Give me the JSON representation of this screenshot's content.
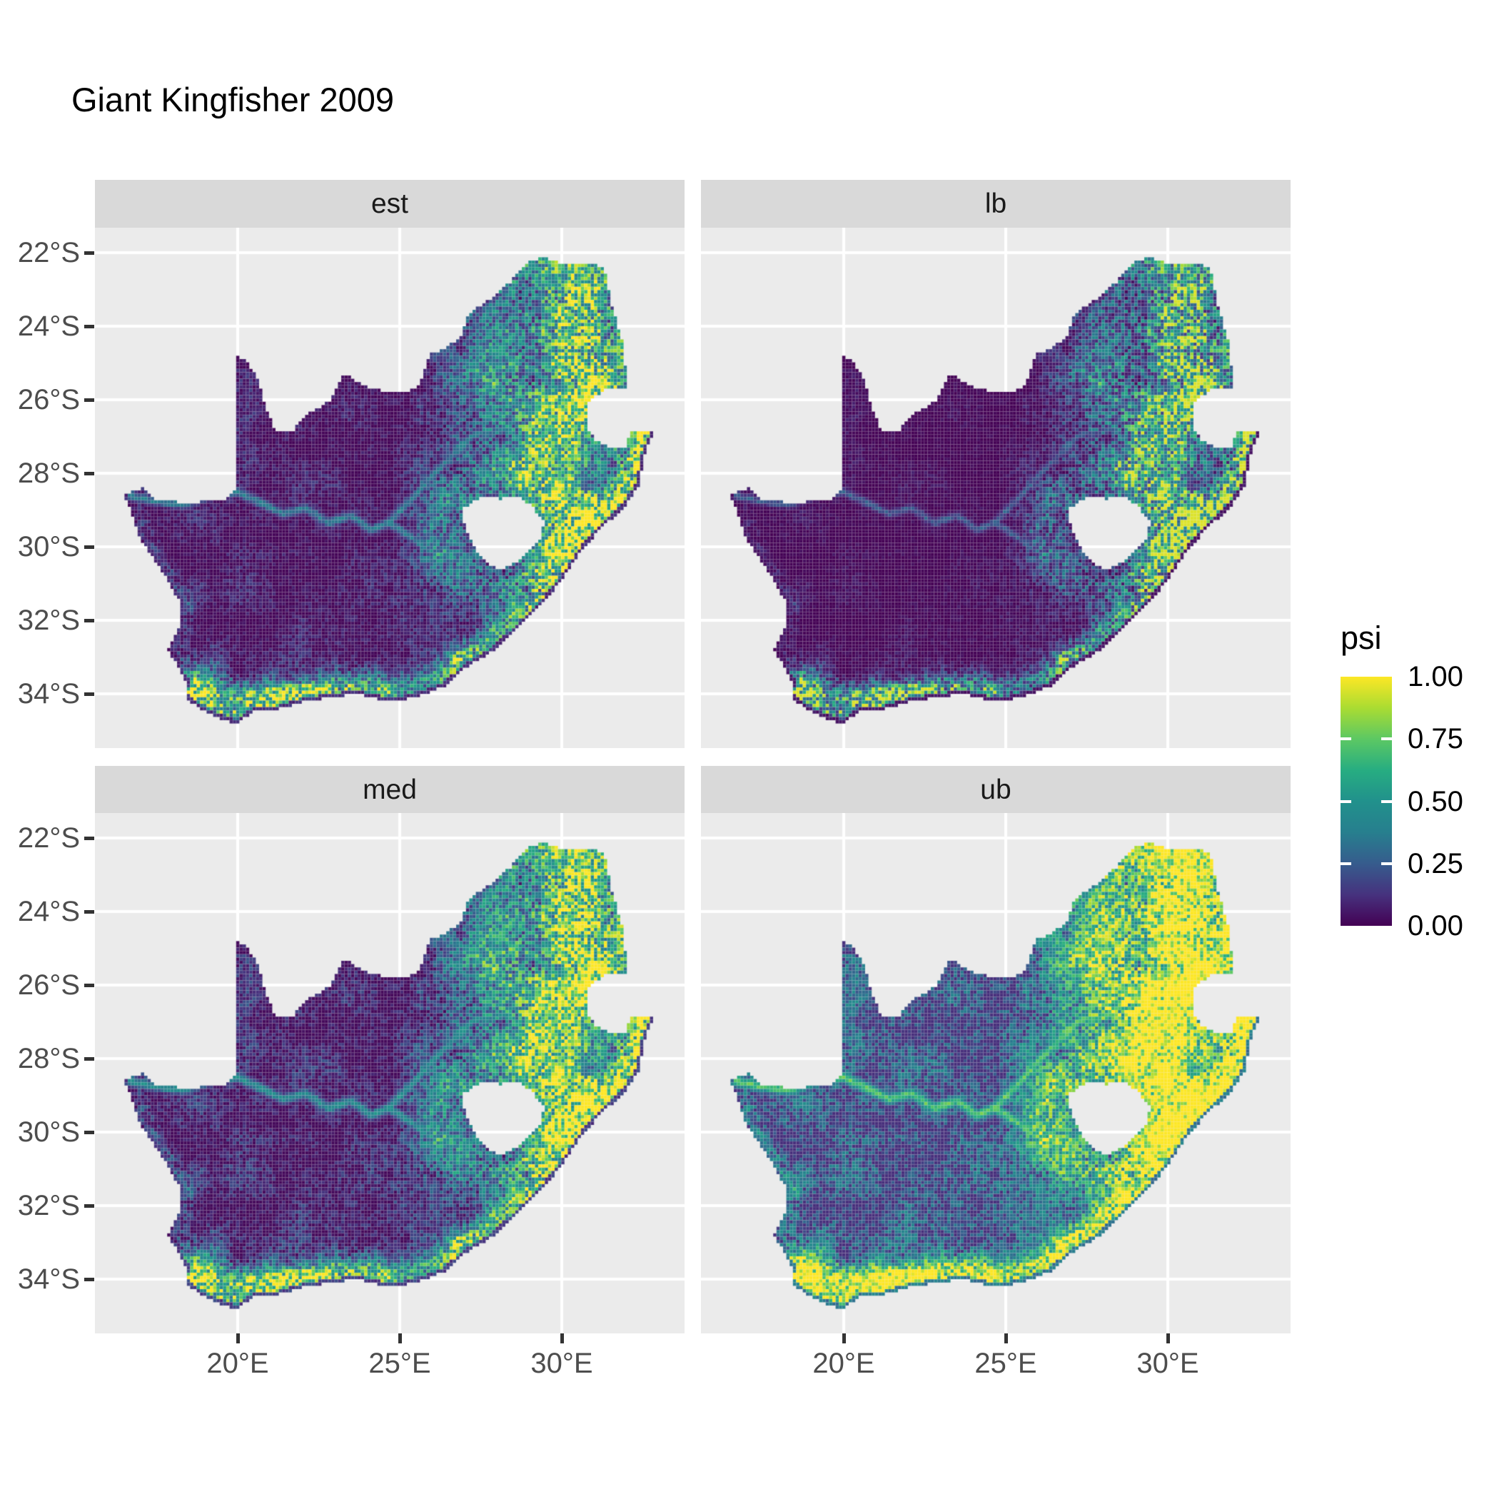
{
  "title": "Giant Kingfisher 2009",
  "facets": [
    {
      "label": "est"
    },
    {
      "label": "lb"
    },
    {
      "label": "med"
    },
    {
      "label": "ub"
    }
  ],
  "axes": {
    "x": {
      "ticks": [
        {
          "label": "20°E",
          "lon": 20
        },
        {
          "label": "25°E",
          "lon": 25
        },
        {
          "label": "30°E",
          "lon": 30
        }
      ]
    },
    "y": {
      "ticks": [
        {
          "label": "22°S",
          "lat": -22
        },
        {
          "label": "24°S",
          "lat": -24
        },
        {
          "label": "26°S",
          "lat": -26
        },
        {
          "label": "28°S",
          "lat": -28
        },
        {
          "label": "30°S",
          "lat": -30
        },
        {
          "label": "32°S",
          "lat": -32
        },
        {
          "label": "34°S",
          "lat": -34
        }
      ]
    }
  },
  "legend": {
    "title": "psi",
    "ticks": [
      {
        "label": "1.00",
        "value": 1.0
      },
      {
        "label": "0.75",
        "value": 0.75
      },
      {
        "label": "0.50",
        "value": 0.5
      },
      {
        "label": "0.25",
        "value": 0.25
      },
      {
        "label": "0.00",
        "value": 0.0
      }
    ]
  },
  "colors": {
    "background": "#ffffff",
    "panel_bg": "#ebebeb",
    "strip_bg": "#d9d9d9",
    "gridline": "#ffffff",
    "axis_text": "#4d4d4d",
    "tick_mark": "#333333",
    "title_text": "#000000"
  },
  "chart_data": {
    "type": "heatmap",
    "title": "Giant Kingfisher 2009",
    "region": "South Africa",
    "variable": "psi",
    "value_range": [
      0,
      1
    ],
    "facets": [
      "est",
      "lb",
      "med",
      "ub"
    ],
    "palette": "viridis",
    "palette_stops": [
      [
        0.0,
        "#440154"
      ],
      [
        0.125,
        "#46327e"
      ],
      [
        0.25,
        "#365c8d"
      ],
      [
        0.375,
        "#277f8e"
      ],
      [
        0.5,
        "#21918c"
      ],
      [
        0.625,
        "#27ad81"
      ],
      [
        0.75,
        "#5cc863"
      ],
      [
        0.875,
        "#aadc32"
      ],
      [
        1.0,
        "#fde725"
      ]
    ],
    "lon_range": [
      15.59,
      33.79
    ],
    "lat_range": [
      -35.48,
      -21.32
    ],
    "x_gridlines": [
      20,
      25,
      30
    ],
    "y_gridlines": [
      -22,
      -24,
      -26,
      -28,
      -30,
      -32,
      -34
    ],
    "facet_transforms": {
      "est": {
        "offset": 0.0,
        "scale": 1.0,
        "gamma": 1.25
      },
      "lb": {
        "offset": 0.0,
        "scale": 0.95,
        "gamma": 1.7
      },
      "med": {
        "offset": 0.0,
        "scale": 1.08,
        "gamma": 1.05
      },
      "ub": {
        "offset": 0.06,
        "scale": 1.28,
        "gamma": 0.8
      }
    },
    "outline": [
      [
        16.47,
        -28.58
      ],
      [
        17.05,
        -28.4
      ],
      [
        17.4,
        -28.7
      ],
      [
        17.95,
        -28.75
      ],
      [
        18.55,
        -28.85
      ],
      [
        19.1,
        -28.7
      ],
      [
        19.55,
        -28.72
      ],
      [
        19.99,
        -28.45
      ],
      [
        19.99,
        -24.77
      ],
      [
        20.35,
        -25.05
      ],
      [
        20.65,
        -25.47
      ],
      [
        20.85,
        -26.15
      ],
      [
        21.15,
        -26.86
      ],
      [
        21.7,
        -26.86
      ],
      [
        22.08,
        -26.4
      ],
      [
        22.57,
        -26.2
      ],
      [
        22.89,
        -25.98
      ],
      [
        23.28,
        -25.28
      ],
      [
        23.92,
        -25.62
      ],
      [
        24.75,
        -25.82
      ],
      [
        25.38,
        -25.74
      ],
      [
        25.6,
        -25.6
      ],
      [
        25.92,
        -24.76
      ],
      [
        26.42,
        -24.62
      ],
      [
        26.88,
        -24.26
      ],
      [
        27.15,
        -23.64
      ],
      [
        27.95,
        -23.16
      ],
      [
        28.35,
        -22.85
      ],
      [
        29.05,
        -22.22
      ],
      [
        29.45,
        -22.14
      ],
      [
        30.0,
        -22.3
      ],
      [
        30.85,
        -22.28
      ],
      [
        31.3,
        -22.4
      ],
      [
        31.56,
        -23.48
      ],
      [
        31.86,
        -24.4
      ],
      [
        32.05,
        -25.65
      ],
      [
        31.33,
        -25.74
      ],
      [
        30.82,
        -26.05
      ],
      [
        30.78,
        -26.8
      ],
      [
        31.05,
        -27.1
      ],
      [
        31.5,
        -27.32
      ],
      [
        31.97,
        -27.31
      ],
      [
        32.13,
        -26.86
      ],
      [
        32.85,
        -26.86
      ],
      [
        32.55,
        -27.5
      ],
      [
        32.38,
        -28.32
      ],
      [
        31.95,
        -28.92
      ],
      [
        31.3,
        -29.42
      ],
      [
        30.65,
        -30.05
      ],
      [
        30.0,
        -30.92
      ],
      [
        29.3,
        -31.65
      ],
      [
        28.55,
        -32.3
      ],
      [
        27.85,
        -32.85
      ],
      [
        27.05,
        -33.28
      ],
      [
        26.4,
        -33.78
      ],
      [
        25.62,
        -34.05
      ],
      [
        24.8,
        -34.22
      ],
      [
        23.6,
        -34.0
      ],
      [
        22.95,
        -34.1
      ],
      [
        22.1,
        -34.2
      ],
      [
        21.2,
        -34.43
      ],
      [
        20.5,
        -34.48
      ],
      [
        19.98,
        -34.82
      ],
      [
        19.3,
        -34.62
      ],
      [
        18.78,
        -34.38
      ],
      [
        18.42,
        -34.12
      ],
      [
        18.46,
        -33.72
      ],
      [
        18.23,
        -33.38
      ],
      [
        17.85,
        -32.78
      ],
      [
        18.25,
        -32.05
      ],
      [
        18.28,
        -31.6
      ],
      [
        17.6,
        -30.55
      ],
      [
        17.02,
        -29.85
      ],
      [
        16.75,
        -29.12
      ],
      [
        16.47,
        -28.58
      ]
    ],
    "lesotho": [
      [
        27.0,
        -28.92
      ],
      [
        27.55,
        -28.62
      ],
      [
        28.15,
        -28.7
      ],
      [
        28.68,
        -28.6
      ],
      [
        29.1,
        -28.92
      ],
      [
        29.45,
        -29.3
      ],
      [
        29.32,
        -29.85
      ],
      [
        28.82,
        -30.28
      ],
      [
        28.12,
        -30.66
      ],
      [
        27.7,
        -30.42
      ],
      [
        27.38,
        -30.1
      ],
      [
        27.05,
        -29.58
      ],
      [
        26.95,
        -29.18
      ],
      [
        27.0,
        -28.92
      ]
    ],
    "rivers": {
      "orange": [
        [
          16.6,
          -28.6
        ],
        [
          17.4,
          -28.75
        ],
        [
          18.3,
          -28.85
        ],
        [
          19.2,
          -28.6
        ],
        [
          20.0,
          -28.5
        ],
        [
          20.8,
          -28.85
        ],
        [
          21.4,
          -29.1
        ],
        [
          22.1,
          -28.95
        ],
        [
          22.8,
          -29.35
        ],
        [
          23.5,
          -29.15
        ],
        [
          24.1,
          -29.55
        ],
        [
          24.65,
          -29.35
        ],
        [
          25.3,
          -29.7
        ],
        [
          25.9,
          -30.1
        ],
        [
          26.5,
          -30.3
        ],
        [
          26.95,
          -30.4
        ]
      ],
      "vaal": [
        [
          24.65,
          -29.35
        ],
        [
          25.1,
          -28.95
        ],
        [
          25.7,
          -28.4
        ],
        [
          26.3,
          -27.8
        ],
        [
          26.85,
          -27.3
        ],
        [
          27.3,
          -26.95
        ],
        [
          27.95,
          -26.85
        ],
        [
          28.4,
          -26.8
        ]
      ]
    },
    "coast_east": [
      [
        32.85,
        -26.86
      ],
      [
        32.55,
        -27.5
      ],
      [
        32.38,
        -28.32
      ],
      [
        31.95,
        -28.92
      ],
      [
        31.3,
        -29.42
      ],
      [
        30.65,
        -30.05
      ],
      [
        30.0,
        -30.92
      ],
      [
        29.3,
        -31.65
      ],
      [
        28.55,
        -32.3
      ],
      [
        27.85,
        -32.85
      ],
      [
        27.05,
        -33.28
      ]
    ],
    "coast_south": [
      [
        27.05,
        -33.28
      ],
      [
        26.4,
        -33.78
      ],
      [
        25.62,
        -34.05
      ],
      [
        24.8,
        -34.22
      ],
      [
        23.6,
        -34.0
      ],
      [
        22.95,
        -34.1
      ],
      [
        22.1,
        -34.2
      ],
      [
        21.2,
        -34.43
      ],
      [
        20.5,
        -34.48
      ],
      [
        19.98,
        -34.82
      ],
      [
        19.3,
        -34.62
      ],
      [
        18.78,
        -34.38
      ],
      [
        18.42,
        -34.12
      ]
    ],
    "coast_west": [
      [
        18.46,
        -33.72
      ],
      [
        18.23,
        -33.38
      ],
      [
        17.85,
        -32.78
      ],
      [
        18.25,
        -32.05
      ],
      [
        18.28,
        -31.6
      ],
      [
        17.6,
        -30.55
      ],
      [
        17.02,
        -29.85
      ],
      [
        16.75,
        -29.12
      ],
      [
        16.47,
        -28.58
      ]
    ],
    "hotspots": [
      {
        "lon": 30.6,
        "lat": -24.3,
        "sx": 1.1,
        "sy": 1.3,
        "w": 0.3
      },
      {
        "lon": 31.0,
        "lat": -25.7,
        "sx": 0.9,
        "sy": 0.9,
        "w": 0.28
      },
      {
        "lon": 29.4,
        "lat": -26.6,
        "sx": 1.6,
        "sy": 1.1,
        "w": 0.22
      },
      {
        "lon": 30.2,
        "lat": -29.3,
        "sx": 0.9,
        "sy": 0.9,
        "w": 0.28
      },
      {
        "lon": 18.95,
        "lat": -33.9,
        "sx": 0.9,
        "sy": 0.75,
        "w": 0.45
      },
      {
        "lon": 20.9,
        "lat": -34.1,
        "sx": 1.7,
        "sy": 0.5,
        "w": 0.3
      },
      {
        "lon": 23.2,
        "lat": -33.8,
        "sx": 2.0,
        "sy": 0.6,
        "w": 0.2
      },
      {
        "lon": 29.9,
        "lat": -23.1,
        "sx": 1.6,
        "sy": 0.8,
        "w": 0.18
      },
      {
        "lon": 27.8,
        "lat": -25.4,
        "sx": 1.2,
        "sy": 0.8,
        "w": 0.15
      }
    ]
  }
}
